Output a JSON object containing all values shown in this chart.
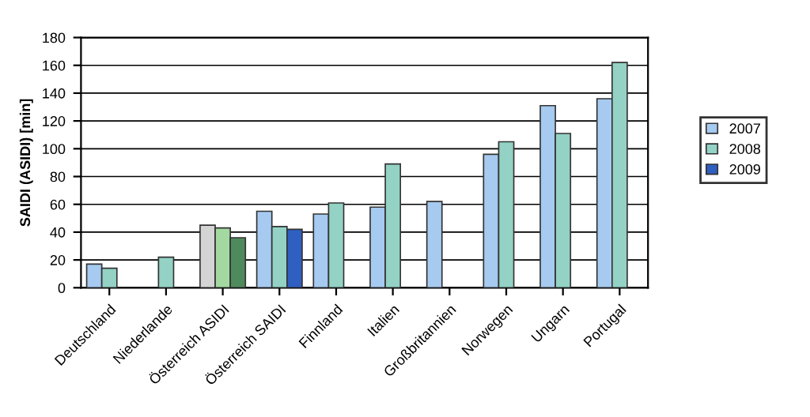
{
  "chart_data": {
    "type": "bar",
    "ylabel": "SAIDI (ASIDI) [min]",
    "categories": [
      "Deutschland",
      "Niederlande",
      "Österreich ASIDI",
      "Österreich SAIDI",
      "Finnland",
      "Italien",
      "Großbritannien",
      "Norwegen",
      "Ungarn",
      "Portugal"
    ],
    "series": [
      {
        "name": "2007",
        "color": "#a6caf0",
        "colors": [
          "#a6caf0",
          "#a6caf0",
          "#d4d4d4",
          "#a6caf0",
          "#a6caf0",
          "#a6caf0",
          "#a6caf0",
          "#a6caf0",
          "#a6caf0",
          "#a6caf0"
        ],
        "values": [
          17,
          null,
          45,
          55,
          53,
          58,
          62,
          96,
          131,
          136
        ]
      },
      {
        "name": "2008",
        "color": "#93d2c4",
        "colors": [
          "#93d2c4",
          "#93d2c4",
          "#a3d9a0",
          "#93d2c4",
          "#93d2c4",
          "#93d2c4",
          "#93d2c4",
          "#93d2c4",
          "#93d2c4",
          "#93d2c4"
        ],
        "values": [
          14,
          22,
          43,
          44,
          61,
          89,
          null,
          105,
          111,
          162
        ]
      },
      {
        "name": "2009",
        "color": "#2f5fc0",
        "colors": [
          null,
          null,
          "#4f8a5c",
          "#2f5fc0",
          null,
          null,
          null,
          null,
          null,
          null
        ],
        "values": [
          null,
          null,
          36,
          42,
          null,
          null,
          null,
          null,
          null,
          null
        ]
      }
    ],
    "ylim": [
      0,
      180
    ],
    "yticks": [
      0,
      20,
      40,
      60,
      80,
      100,
      120,
      140,
      160,
      180
    ],
    "grid": "y",
    "legend": "right"
  }
}
